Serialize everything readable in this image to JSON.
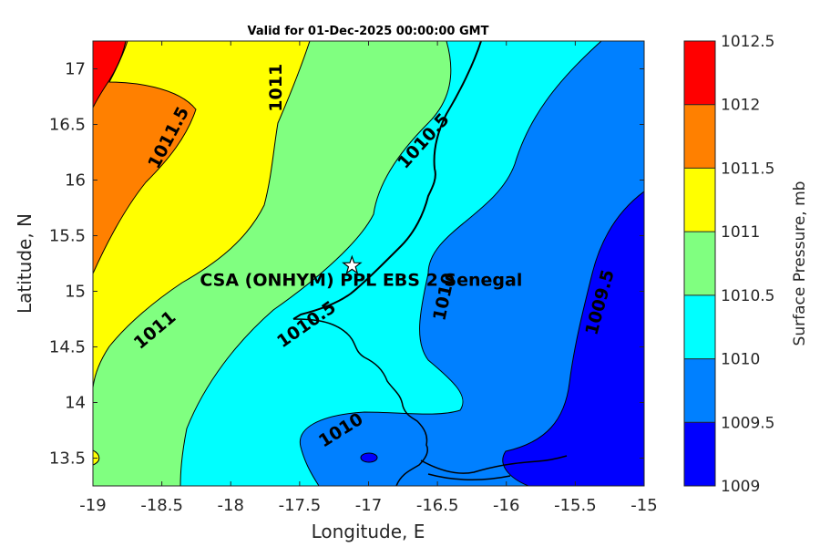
{
  "chart_data": {
    "type": "contour",
    "title": "Valid for 01-Dec-2025 00:00:00 GMT",
    "xlabel": "Longitude, E",
    "ylabel": "Latitude, N",
    "xlim": [
      -19,
      -15
    ],
    "ylim": [
      13.25,
      17.25
    ],
    "xticks": [
      "-19",
      "-18.5",
      "-18",
      "-17.5",
      "-17",
      "-16.5",
      "-16",
      "-15.5",
      "-15"
    ],
    "yticks": [
      "13.5",
      "14",
      "14.5",
      "15",
      "15.5",
      "16",
      "16.5",
      "17"
    ],
    "colorbar": {
      "label": "Surface Pressure, mb",
      "levels": [
        1009,
        1009.5,
        1010,
        1010.5,
        1011,
        1011.5,
        1012,
        1012.5
      ],
      "tick_labels": [
        "1009",
        "1009.5",
        "1010",
        "1010.5",
        "1011",
        "1011.5",
        "1012",
        "1012.5"
      ],
      "colors": [
        "#0000ff",
        "#0080ff",
        "#00ffff",
        "#80ff80",
        "#ffff00",
        "#ff8000",
        "#ff0000",
        "#800000"
      ]
    },
    "contour_labels": [
      {
        "text": "1011.5",
        "lon": -18.45,
        "lat": 16.38,
        "angle": -62
      },
      {
        "text": "1011",
        "lon": -17.67,
        "lat": 16.83,
        "angle": -90
      },
      {
        "text": "1010.5",
        "lon": -16.6,
        "lat": 16.35,
        "angle": -48
      },
      {
        "text": "1011",
        "lon": -18.55,
        "lat": 14.65,
        "angle": -40
      },
      {
        "text": "1010.5",
        "lon": -17.45,
        "lat": 14.7,
        "angle": -35
      },
      {
        "text": "1010",
        "lon": -16.45,
        "lat": 14.95,
        "angle": -78
      },
      {
        "text": "1009.5",
        "lon": -15.32,
        "lat": 14.9,
        "angle": -75
      },
      {
        "text": "1010",
        "lon": -17.2,
        "lat": 13.75,
        "angle": -32
      }
    ],
    "station": {
      "name": "CSA (ONHYM) PPL EBS 2 Senegal",
      "lon": -17.12,
      "lat": 15.23
    }
  }
}
